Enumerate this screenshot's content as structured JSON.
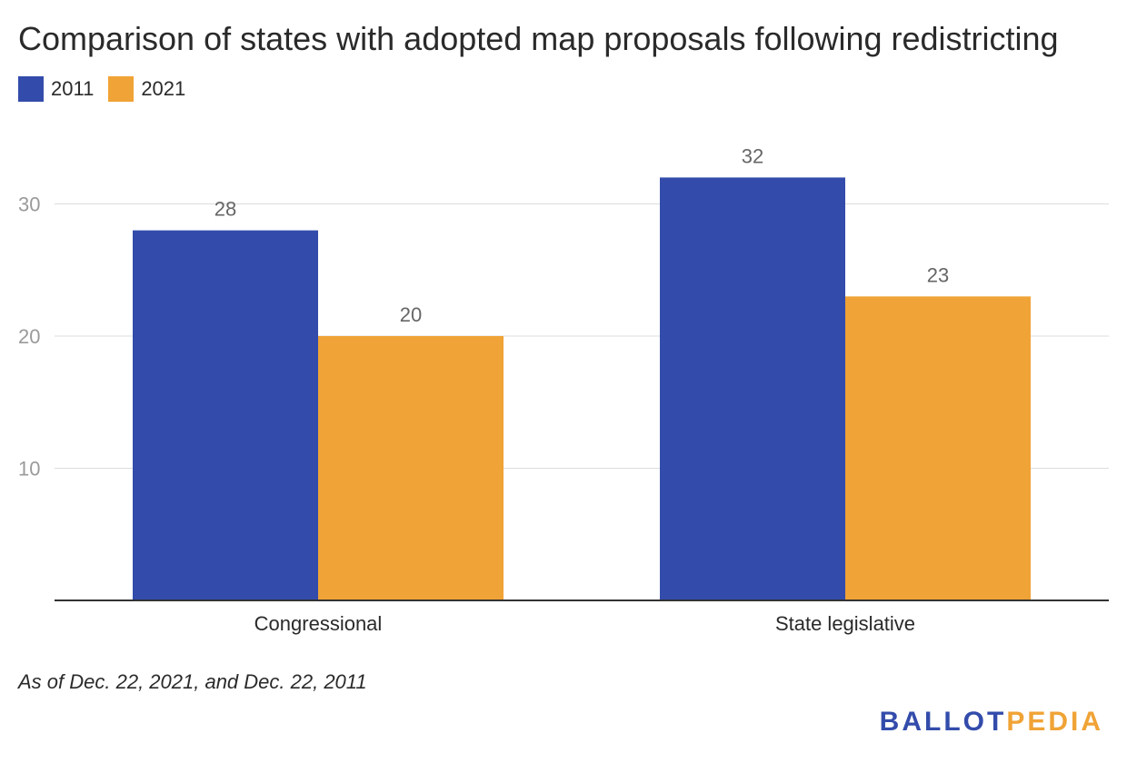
{
  "chart_data": {
    "type": "bar",
    "title": "Comparison of states with adopted map proposals following redistricting",
    "categories": [
      "Congressional",
      "State legislative"
    ],
    "series": [
      {
        "name": "2011",
        "values": [
          28,
          32
        ],
        "color": "#334cab"
      },
      {
        "name": "2021",
        "values": [
          20,
          23
        ],
        "color": "#f0a336"
      }
    ],
    "yticks": [
      10,
      20,
      30
    ],
    "ylim": [
      0,
      37
    ],
    "xlabel": "",
    "ylabel": "",
    "grid": true,
    "legend": "top-left",
    "data_labels": true
  },
  "note": "As of Dec. 22, 2021, and Dec. 22, 2011",
  "logo": {
    "part1": "BALLOT",
    "part2": "PEDIA",
    "color1": "#334cab",
    "color2": "#f0a336"
  }
}
